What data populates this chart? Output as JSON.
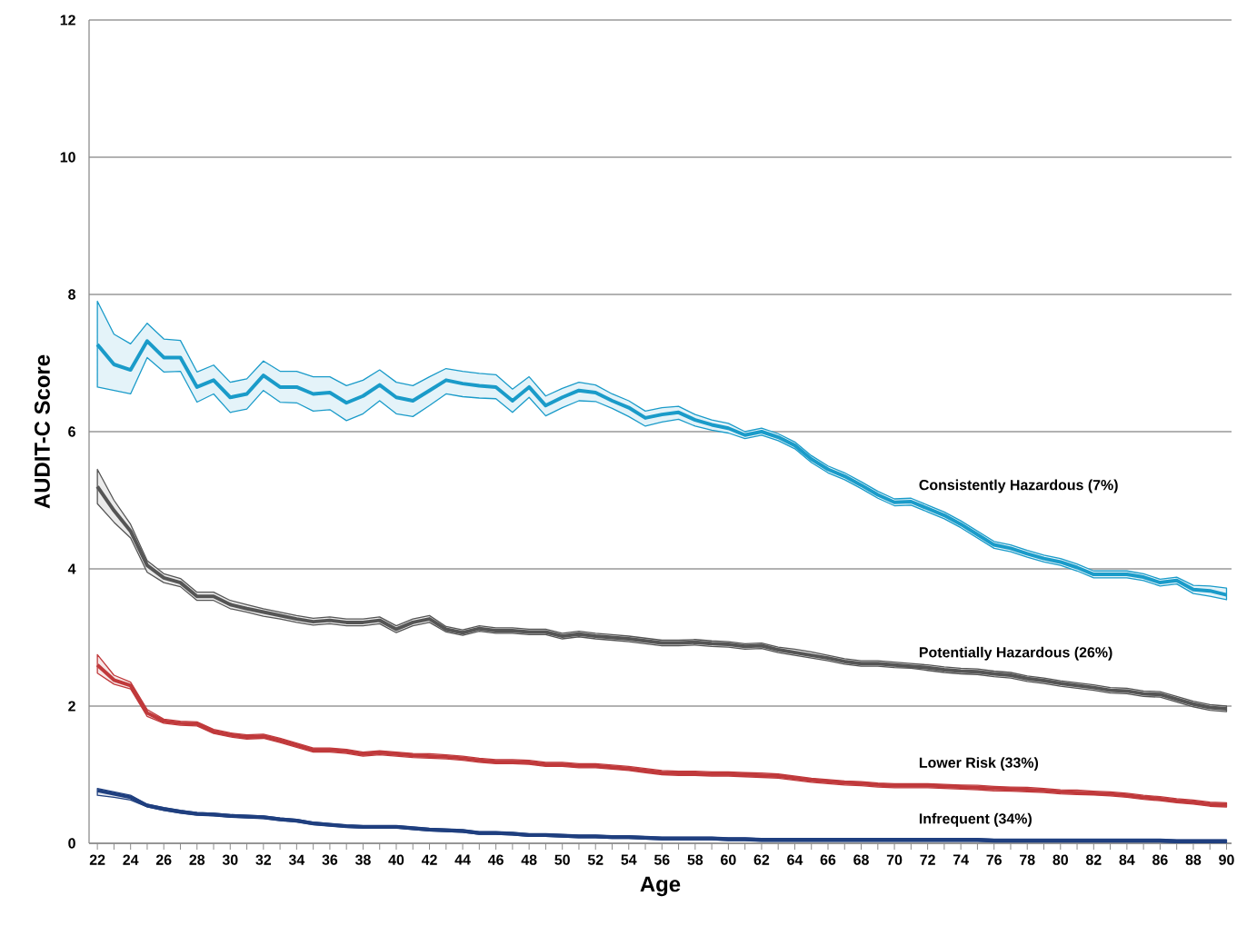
{
  "chart_data": {
    "type": "line",
    "xlabel": "Age",
    "ylabel": "AUDIT-C Score",
    "x": [
      22,
      23,
      24,
      25,
      26,
      27,
      28,
      29,
      30,
      31,
      32,
      33,
      34,
      35,
      36,
      37,
      38,
      39,
      40,
      41,
      42,
      43,
      44,
      45,
      46,
      47,
      48,
      49,
      50,
      51,
      52,
      53,
      54,
      55,
      56,
      57,
      58,
      59,
      60,
      61,
      62,
      63,
      64,
      65,
      66,
      67,
      68,
      69,
      70,
      71,
      72,
      73,
      74,
      75,
      76,
      77,
      78,
      79,
      80,
      81,
      82,
      83,
      84,
      85,
      86,
      87,
      88,
      89,
      90
    ],
    "series": [
      {
        "name": "Consistently Hazardous (7%)",
        "color": "#1a9bc9",
        "values": [
          7.27,
          6.98,
          6.9,
          7.32,
          7.08,
          7.08,
          6.65,
          6.75,
          6.5,
          6.55,
          6.82,
          6.65,
          6.65,
          6.55,
          6.57,
          6.42,
          6.52,
          6.68,
          6.5,
          6.45,
          6.6,
          6.75,
          6.7,
          6.67,
          6.65,
          6.45,
          6.65,
          6.38,
          6.5,
          6.6,
          6.57,
          6.45,
          6.35,
          6.2,
          6.25,
          6.28,
          6.17,
          6.1,
          6.05,
          5.95,
          6.0,
          5.92,
          5.8,
          5.6,
          5.45,
          5.35,
          5.22,
          5.08,
          4.97,
          4.98,
          4.88,
          4.78,
          4.65,
          4.5,
          4.35,
          4.3,
          4.22,
          4.15,
          4.1,
          4.02,
          3.92,
          3.92,
          3.92,
          3.88,
          3.8,
          3.83,
          3.7,
          3.68,
          3.62
        ],
        "upper": [
          7.9,
          7.42,
          7.28,
          7.58,
          7.35,
          7.33,
          6.87,
          6.97,
          6.72,
          6.77,
          7.03,
          6.88,
          6.88,
          6.8,
          6.8,
          6.67,
          6.75,
          6.9,
          6.72,
          6.67,
          6.8,
          6.92,
          6.88,
          6.85,
          6.83,
          6.62,
          6.8,
          6.52,
          6.63,
          6.72,
          6.68,
          6.55,
          6.45,
          6.3,
          6.35,
          6.37,
          6.25,
          6.17,
          6.12,
          6.0,
          6.05,
          5.97,
          5.85,
          5.65,
          5.5,
          5.4,
          5.27,
          5.13,
          5.02,
          5.03,
          4.93,
          4.83,
          4.7,
          4.55,
          4.4,
          4.35,
          4.27,
          4.2,
          4.15,
          4.07,
          3.97,
          3.97,
          3.97,
          3.93,
          3.85,
          3.88,
          3.76,
          3.75,
          3.72
        ],
        "lower": [
          6.65,
          6.6,
          6.55,
          7.08,
          6.87,
          6.88,
          6.43,
          6.55,
          6.28,
          6.33,
          6.6,
          6.43,
          6.42,
          6.3,
          6.32,
          6.16,
          6.26,
          6.45,
          6.26,
          6.22,
          6.38,
          6.55,
          6.51,
          6.49,
          6.48,
          6.28,
          6.5,
          6.23,
          6.35,
          6.45,
          6.44,
          6.34,
          6.22,
          6.08,
          6.14,
          6.18,
          6.08,
          6.02,
          5.98,
          5.9,
          5.95,
          5.87,
          5.75,
          5.55,
          5.4,
          5.3,
          5.17,
          5.03,
          4.92,
          4.93,
          4.83,
          4.73,
          4.6,
          4.45,
          4.3,
          4.25,
          4.17,
          4.1,
          4.05,
          3.97,
          3.87,
          3.87,
          3.87,
          3.83,
          3.75,
          3.78,
          3.64,
          3.6,
          3.55
        ]
      },
      {
        "name": "Potentially Hazardous (26%)",
        "color": "#555555",
        "values": [
          5.2,
          4.85,
          4.55,
          4.05,
          3.87,
          3.8,
          3.6,
          3.6,
          3.48,
          3.42,
          3.37,
          3.32,
          3.27,
          3.23,
          3.25,
          3.22,
          3.22,
          3.25,
          3.12,
          3.22,
          3.27,
          3.12,
          3.07,
          3.13,
          3.1,
          3.1,
          3.08,
          3.08,
          3.02,
          3.05,
          3.02,
          3.0,
          2.98,
          2.95,
          2.92,
          2.92,
          2.93,
          2.91,
          2.9,
          2.87,
          2.88,
          2.82,
          2.78,
          2.74,
          2.7,
          2.65,
          2.62,
          2.62,
          2.6,
          2.58,
          2.56,
          2.53,
          2.51,
          2.5,
          2.47,
          2.45,
          2.4,
          2.37,
          2.33,
          2.3,
          2.27,
          2.23,
          2.22,
          2.18,
          2.17,
          2.1,
          2.03,
          1.98,
          1.96
        ],
        "upper": [
          5.45,
          5.0,
          4.65,
          4.12,
          3.93,
          3.86,
          3.66,
          3.66,
          3.54,
          3.48,
          3.42,
          3.37,
          3.32,
          3.28,
          3.3,
          3.27,
          3.27,
          3.3,
          3.17,
          3.27,
          3.32,
          3.16,
          3.11,
          3.17,
          3.14,
          3.14,
          3.12,
          3.12,
          3.06,
          3.09,
          3.06,
          3.04,
          3.02,
          2.99,
          2.96,
          2.96,
          2.97,
          2.95,
          2.94,
          2.91,
          2.92,
          2.86,
          2.83,
          2.79,
          2.74,
          2.69,
          2.66,
          2.66,
          2.64,
          2.62,
          2.6,
          2.57,
          2.55,
          2.54,
          2.51,
          2.49,
          2.44,
          2.41,
          2.37,
          2.34,
          2.31,
          2.27,
          2.26,
          2.22,
          2.21,
          2.14,
          2.07,
          2.02,
          2.0
        ],
        "lower": [
          4.95,
          4.68,
          4.45,
          3.95,
          3.8,
          3.74,
          3.54,
          3.54,
          3.42,
          3.37,
          3.31,
          3.27,
          3.22,
          3.18,
          3.2,
          3.17,
          3.17,
          3.2,
          3.07,
          3.17,
          3.22,
          3.08,
          3.03,
          3.09,
          3.06,
          3.06,
          3.04,
          3.04,
          2.98,
          3.01,
          2.98,
          2.96,
          2.94,
          2.91,
          2.88,
          2.88,
          2.89,
          2.87,
          2.86,
          2.83,
          2.84,
          2.78,
          2.74,
          2.7,
          2.66,
          2.61,
          2.58,
          2.58,
          2.56,
          2.55,
          2.52,
          2.49,
          2.47,
          2.46,
          2.43,
          2.41,
          2.36,
          2.33,
          2.29,
          2.26,
          2.23,
          2.19,
          2.18,
          2.14,
          2.13,
          2.06,
          1.99,
          1.94,
          1.92
        ]
      },
      {
        "name": "Lower Risk (33%)",
        "color": "#c0393b",
        "values": [
          2.6,
          2.38,
          2.3,
          1.9,
          1.78,
          1.75,
          1.74,
          1.63,
          1.58,
          1.55,
          1.56,
          1.5,
          1.43,
          1.36,
          1.36,
          1.34,
          1.3,
          1.32,
          1.3,
          1.28,
          1.27,
          1.26,
          1.24,
          1.21,
          1.19,
          1.19,
          1.18,
          1.15,
          1.15,
          1.13,
          1.13,
          1.11,
          1.09,
          1.06,
          1.03,
          1.02,
          1.02,
          1.01,
          1.01,
          1.0,
          0.99,
          0.98,
          0.95,
          0.92,
          0.9,
          0.88,
          0.87,
          0.85,
          0.84,
          0.84,
          0.84,
          0.83,
          0.82,
          0.81,
          0.8,
          0.79,
          0.78,
          0.77,
          0.75,
          0.74,
          0.73,
          0.72,
          0.7,
          0.67,
          0.65,
          0.62,
          0.6,
          0.57,
          0.56
        ],
        "upper": [
          2.75,
          2.45,
          2.35,
          1.95,
          1.81,
          1.78,
          1.77,
          1.66,
          1.61,
          1.58,
          1.59,
          1.53,
          1.46,
          1.39,
          1.39,
          1.37,
          1.33,
          1.35,
          1.33,
          1.31,
          1.305,
          1.29,
          1.27,
          1.24,
          1.22,
          1.22,
          1.21,
          1.18,
          1.18,
          1.16,
          1.16,
          1.14,
          1.12,
          1.09,
          1.06,
          1.05,
          1.05,
          1.04,
          1.04,
          1.03,
          1.025,
          1.01,
          0.98,
          0.95,
          0.93,
          0.91,
          0.9,
          0.88,
          0.87,
          0.87,
          0.87,
          0.86,
          0.85,
          0.845,
          0.83,
          0.82,
          0.815,
          0.8,
          0.78,
          0.775,
          0.76,
          0.75,
          0.73,
          0.7,
          0.68,
          0.65,
          0.63,
          0.6,
          0.59
        ],
        "lower": [
          2.48,
          2.32,
          2.25,
          1.85,
          1.75,
          1.72,
          1.71,
          1.6,
          1.55,
          1.52,
          1.53,
          1.47,
          1.4,
          1.33,
          1.33,
          1.31,
          1.27,
          1.29,
          1.27,
          1.25,
          1.24,
          1.23,
          1.21,
          1.18,
          1.16,
          1.16,
          1.15,
          1.12,
          1.12,
          1.1,
          1.1,
          1.08,
          1.06,
          1.03,
          1.0,
          0.99,
          0.99,
          0.98,
          0.98,
          0.97,
          0.96,
          0.95,
          0.92,
          0.89,
          0.87,
          0.85,
          0.84,
          0.82,
          0.81,
          0.81,
          0.81,
          0.8,
          0.79,
          0.78,
          0.765,
          0.76,
          0.75,
          0.74,
          0.72,
          0.71,
          0.705,
          0.69,
          0.67,
          0.64,
          0.62,
          0.59,
          0.57,
          0.54,
          0.53
        ]
      },
      {
        "name": "Infrequent (34%)",
        "color": "#1f3f7f",
        "values": [
          0.77,
          0.72,
          0.67,
          0.55,
          0.5,
          0.46,
          0.43,
          0.42,
          0.4,
          0.39,
          0.38,
          0.35,
          0.33,
          0.29,
          0.27,
          0.25,
          0.24,
          0.24,
          0.24,
          0.22,
          0.2,
          0.19,
          0.18,
          0.15,
          0.15,
          0.14,
          0.12,
          0.12,
          0.11,
          0.1,
          0.1,
          0.09,
          0.09,
          0.08,
          0.07,
          0.07,
          0.07,
          0.07,
          0.06,
          0.06,
          0.05,
          0.05,
          0.05,
          0.05,
          0.05,
          0.05,
          0.05,
          0.05,
          0.05,
          0.05,
          0.05,
          0.05,
          0.05,
          0.05,
          0.04,
          0.04,
          0.04,
          0.04,
          0.04,
          0.04,
          0.04,
          0.04,
          0.04,
          0.04,
          0.04,
          0.03,
          0.03,
          0.03,
          0.03
        ],
        "upper": [
          0.8,
          0.75,
          0.7,
          0.57,
          0.52,
          0.48,
          0.45,
          0.44,
          0.42,
          0.41,
          0.4,
          0.37,
          0.35,
          0.31,
          0.29,
          0.27,
          0.26,
          0.26,
          0.26,
          0.24,
          0.22,
          0.21,
          0.2,
          0.17,
          0.17,
          0.16,
          0.14,
          0.14,
          0.13,
          0.12,
          0.12,
          0.11,
          0.11,
          0.1,
          0.09,
          0.09,
          0.09,
          0.09,
          0.08,
          0.08,
          0.07,
          0.07,
          0.07,
          0.07,
          0.07,
          0.07,
          0.07,
          0.07,
          0.07,
          0.07,
          0.07,
          0.07,
          0.07,
          0.07,
          0.06,
          0.06,
          0.06,
          0.06,
          0.06,
          0.06,
          0.06,
          0.06,
          0.06,
          0.06,
          0.06,
          0.05,
          0.05,
          0.05,
          0.05
        ],
        "lower": [
          0.7,
          0.67,
          0.63,
          0.53,
          0.48,
          0.44,
          0.41,
          0.4,
          0.38,
          0.37,
          0.36,
          0.33,
          0.31,
          0.27,
          0.25,
          0.23,
          0.22,
          0.22,
          0.22,
          0.2,
          0.18,
          0.17,
          0.16,
          0.13,
          0.13,
          0.12,
          0.1,
          0.1,
          0.09,
          0.08,
          0.08,
          0.07,
          0.07,
          0.06,
          0.05,
          0.05,
          0.05,
          0.05,
          0.04,
          0.04,
          0.03,
          0.03,
          0.03,
          0.03,
          0.03,
          0.03,
          0.03,
          0.03,
          0.03,
          0.03,
          0.03,
          0.03,
          0.03,
          0.03,
          0.02,
          0.02,
          0.02,
          0.02,
          0.02,
          0.02,
          0.02,
          0.02,
          0.02,
          0.02,
          0.02,
          0.01,
          0.01,
          0.01,
          0.01
        ]
      }
    ],
    "xlim": [
      21.5,
      90.3
    ],
    "ylim": [
      0,
      12
    ],
    "xticks": [
      22,
      {
        "value": 23,
        "label": null
      },
      24,
      {
        "value": 25,
        "label": null
      },
      26,
      {
        "value": 27,
        "label": null
      },
      28,
      {
        "value": 29,
        "label": null
      },
      30,
      {
        "value": 31,
        "label": null
      },
      32,
      {
        "value": 33,
        "label": null
      },
      34,
      {
        "value": 35,
        "label": null
      },
      36,
      {
        "value": 37,
        "label": null
      },
      38,
      {
        "value": 39,
        "label": null
      },
      40,
      {
        "value": 41,
        "label": null
      },
      42,
      {
        "value": 43,
        "label": null
      },
      44,
      {
        "value": 45,
        "label": null
      },
      46,
      {
        "value": 47,
        "label": null
      },
      48,
      {
        "value": 49,
        "label": null
      },
      50,
      {
        "value": 51,
        "label": null
      },
      52,
      {
        "value": 53,
        "label": null
      },
      54,
      {
        "value": 55,
        "label": null
      },
      56,
      {
        "value": 57,
        "label": null
      },
      58,
      {
        "value": 59,
        "label": null
      },
      60,
      {
        "value": 61,
        "label": null
      },
      62,
      {
        "value": 63,
        "label": null
      },
      64,
      {
        "value": 65,
        "label": null
      },
      66,
      {
        "value": 67,
        "label": null
      },
      68,
      {
        "value": 69,
        "label": null
      },
      70,
      {
        "value": 71,
        "label": null
      },
      72,
      {
        "value": 73,
        "label": null
      },
      74,
      {
        "value": 75,
        "label": null
      },
      76,
      {
        "value": 77,
        "label": null
      },
      78,
      {
        "value": 79,
        "label": null
      },
      80,
      {
        "value": 81,
        "label": null
      },
      82,
      {
        "value": 83,
        "label": null
      },
      84,
      {
        "value": 85,
        "label": null
      },
      86,
      {
        "value": 87,
        "label": null
      },
      88,
      {
        "value": 89,
        "label": null
      },
      90
    ],
    "yticks": [
      0,
      2,
      4,
      6,
      8,
      10,
      12
    ],
    "grid": "y",
    "marker": "none",
    "line_style": "solid"
  }
}
